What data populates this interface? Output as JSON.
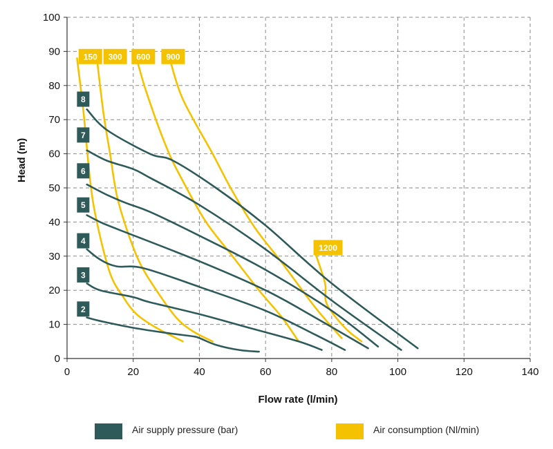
{
  "colors": {
    "pressure": "#2e5a5a",
    "consumption": "#f5c200",
    "grid": "#8a8a8a",
    "axis": "#333333"
  },
  "chart_data": {
    "type": "line",
    "xlabel": "Flow rate (l/min)",
    "ylabel": "Head (m)",
    "xlim": [
      0,
      140
    ],
    "ylim": [
      0,
      100
    ],
    "xticks": [
      0,
      20,
      40,
      60,
      80,
      100,
      120,
      140
    ],
    "yticks": [
      0,
      10,
      20,
      30,
      40,
      50,
      60,
      70,
      80,
      90,
      100
    ],
    "grid": true,
    "legend": [
      {
        "label": "Air supply pressure (bar)",
        "color": "#2e5a5a"
      },
      {
        "label": "Air consumption (Nl/min)",
        "color": "#f5c200"
      }
    ],
    "pressure_series": [
      {
        "name": "2",
        "points": [
          [
            6,
            12
          ],
          [
            10,
            11
          ],
          [
            20,
            9
          ],
          [
            30,
            7.5
          ],
          [
            38,
            6.5
          ],
          [
            40,
            6
          ],
          [
            45,
            4
          ],
          [
            52,
            2.5
          ],
          [
            58,
            2
          ]
        ]
      },
      {
        "name": "3",
        "points": [
          [
            6,
            22
          ],
          [
            10,
            20
          ],
          [
            20,
            18
          ],
          [
            25,
            16.5
          ],
          [
            40,
            13
          ],
          [
            55,
            9
          ],
          [
            70,
            5
          ],
          [
            77,
            2.5
          ]
        ]
      },
      {
        "name": "4",
        "points": [
          [
            6,
            32
          ],
          [
            10,
            29
          ],
          [
            15,
            27
          ],
          [
            23,
            26.5
          ],
          [
            40,
            21
          ],
          [
            60,
            14
          ],
          [
            75,
            7
          ],
          [
            84,
            2.5
          ]
        ]
      },
      {
        "name": "5",
        "points": [
          [
            6,
            42
          ],
          [
            10,
            40
          ],
          [
            15,
            38
          ],
          [
            40,
            28.5
          ],
          [
            60,
            20
          ],
          [
            75,
            12
          ],
          [
            91,
            3
          ]
        ]
      },
      {
        "name": "6",
        "points": [
          [
            6,
            51
          ],
          [
            12,
            48
          ],
          [
            18,
            45.5
          ],
          [
            25,
            43
          ],
          [
            40,
            36
          ],
          [
            60,
            26
          ],
          [
            80,
            14
          ],
          [
            94,
            3.5
          ]
        ]
      },
      {
        "name": "7",
        "points": [
          [
            6,
            61
          ],
          [
            12,
            58
          ],
          [
            20,
            55.5
          ],
          [
            25,
            53
          ],
          [
            40,
            45
          ],
          [
            60,
            32
          ],
          [
            80,
            17
          ],
          [
            101,
            2.5
          ]
        ]
      },
      {
        "name": "8",
        "points": [
          [
            6,
            73
          ],
          [
            12,
            67
          ],
          [
            25,
            60
          ],
          [
            32,
            58
          ],
          [
            45,
            50
          ],
          [
            60,
            39
          ],
          [
            80,
            22
          ],
          [
            106,
            3
          ]
        ]
      }
    ],
    "consumption_series": [
      {
        "name": "150",
        "points": [
          [
            3,
            88
          ],
          [
            5,
            72
          ],
          [
            7,
            52
          ],
          [
            9,
            40
          ],
          [
            13,
            25
          ],
          [
            17,
            18
          ],
          [
            21,
            13
          ],
          [
            27,
            9
          ],
          [
            35,
            5
          ]
        ]
      },
      {
        "name": "300",
        "points": [
          [
            9,
            88
          ],
          [
            11,
            72
          ],
          [
            13,
            60
          ],
          [
            15,
            48
          ],
          [
            18,
            38
          ],
          [
            22,
            28
          ],
          [
            27,
            20
          ],
          [
            33,
            12
          ],
          [
            38,
            8
          ],
          [
            44,
            5
          ]
        ]
      },
      {
        "name": "600",
        "points": [
          [
            21,
            88
          ],
          [
            24,
            78
          ],
          [
            30,
            62
          ],
          [
            35,
            52
          ],
          [
            42,
            40
          ],
          [
            50,
            30
          ],
          [
            58,
            20
          ],
          [
            65,
            12
          ],
          [
            70,
            5
          ]
        ]
      },
      {
        "name": "900",
        "points": [
          [
            31,
            88
          ],
          [
            35,
            76
          ],
          [
            44,
            60
          ],
          [
            50,
            49
          ],
          [
            57,
            38
          ],
          [
            65,
            28
          ],
          [
            75,
            15
          ],
          [
            83,
            6
          ]
        ]
      },
      {
        "name": "1200",
        "points": [
          [
            75,
            31
          ],
          [
            78,
            22
          ],
          [
            78.5,
            16
          ],
          [
            84,
            9
          ],
          [
            89,
            5
          ]
        ]
      }
    ],
    "pressure_tags": [
      {
        "text": "2",
        "x": 3,
        "y": 14.5
      },
      {
        "text": "3",
        "x": 3,
        "y": 24.5
      },
      {
        "text": "4",
        "x": 3,
        "y": 34.5
      },
      {
        "text": "5",
        "x": 3,
        "y": 45
      },
      {
        "text": "6",
        "x": 3,
        "y": 55
      },
      {
        "text": "7",
        "x": 3,
        "y": 65.5
      },
      {
        "text": "8",
        "x": 3,
        "y": 76
      }
    ],
    "consumption_tags": [
      {
        "text": "150",
        "x": 3.5,
        "y": 88.5
      },
      {
        "text": "300",
        "x": 11,
        "y": 88.5
      },
      {
        "text": "600",
        "x": 19.5,
        "y": 88.5
      },
      {
        "text": "900",
        "x": 28.5,
        "y": 88.5
      },
      {
        "text": "1200",
        "x": 74.5,
        "y": 32.5
      }
    ]
  }
}
